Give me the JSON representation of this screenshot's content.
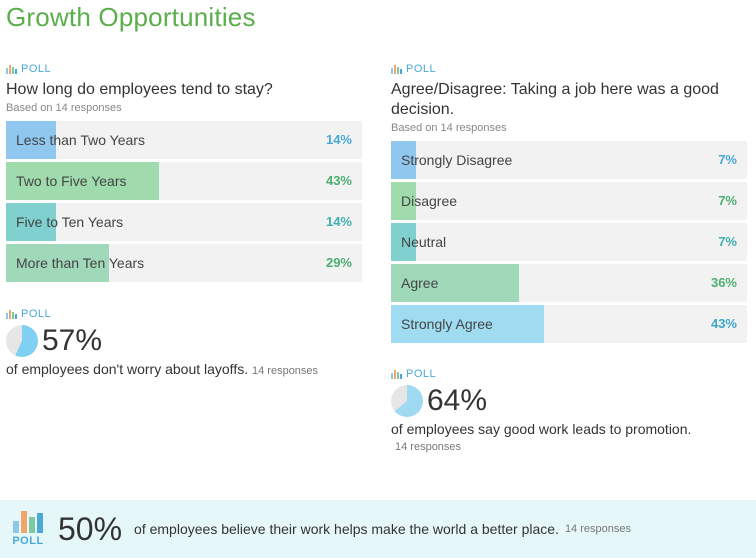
{
  "page": {
    "title": "Growth Opportunities"
  },
  "poll_label": "POLL",
  "tenure_poll": {
    "question": "How long do employees tend to stay?",
    "based_on": "Based on 14 responses",
    "options": [
      {
        "label": "Less than Two Years",
        "percent_text": "14%",
        "value": 14,
        "color": "#8fc7ee",
        "pct_color": "#4aa9d6"
      },
      {
        "label": "Two to Five Years",
        "percent_text": "43%",
        "value": 43,
        "color": "#9fdbad",
        "pct_color": "#4caf72"
      },
      {
        "label": "Five to Ten Years",
        "percent_text": "14%",
        "value": 14,
        "color": "#7fd0cf",
        "pct_color": "#3fb0ad"
      },
      {
        "label": "More than Ten Years",
        "percent_text": "29%",
        "value": 29,
        "color": "#9fd9b9",
        "pct_color": "#4caf72"
      }
    ]
  },
  "layoff_stat": {
    "value": 57,
    "percent_text": "57%",
    "text": "of employees don't worry about layoffs.",
    "responses": "14 responses",
    "color": "#7fd0f2"
  },
  "decision_poll": {
    "question": "Agree/Disagree: Taking a job here was a good decision.",
    "based_on": "Based on 14 responses",
    "options": [
      {
        "label": "Strongly Disagree",
        "percent_text": "7%",
        "value": 7,
        "color": "#8fc7ee",
        "pct_color": "#4aa9d6"
      },
      {
        "label": "Disagree",
        "percent_text": "7%",
        "value": 7,
        "color": "#9fdbad",
        "pct_color": "#4caf72"
      },
      {
        "label": "Neutral",
        "percent_text": "7%",
        "value": 7,
        "color": "#7fd0cf",
        "pct_color": "#3fb0ad"
      },
      {
        "label": "Agree",
        "percent_text": "36%",
        "value": 36,
        "color": "#9fd9b9",
        "pct_color": "#4caf72"
      },
      {
        "label": "Strongly Agree",
        "percent_text": "43%",
        "value": 43,
        "color": "#9fdcf2",
        "pct_color": "#3fa6c9"
      }
    ]
  },
  "promotion_stat": {
    "value": 64,
    "percent_text": "64%",
    "text": "of employees say good work leads to promotion.",
    "responses": "14 responses",
    "color": "#9fd9f2"
  },
  "footer": {
    "percent_text": "50%",
    "text": "of employees believe their work helps make the world a better place.",
    "responses": "14 responses",
    "poll_label": "POLL"
  }
}
